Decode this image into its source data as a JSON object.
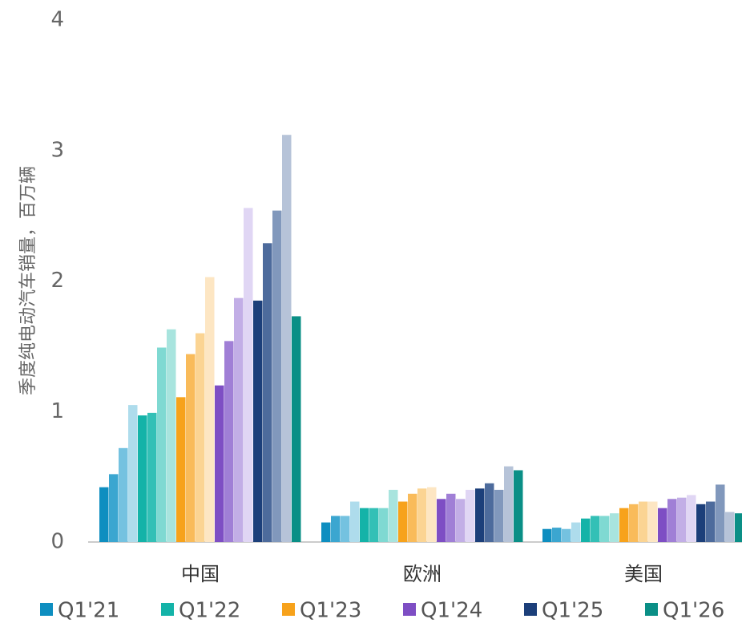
{
  "chart_data": {
    "type": "bar",
    "ylabel": "季度纯电动汽车销量，百万辆",
    "categories": [
      "中国",
      "欧洲",
      "美国"
    ],
    "ylim": [
      0,
      4
    ],
    "yticks": [
      0,
      1,
      2,
      3,
      4
    ],
    "grid": false,
    "series": [
      {
        "name": "Q1'21",
        "color": "#0e8ec0",
        "values": [
          0.42,
          0.15,
          0.1
        ]
      },
      {
        "color": "#3ba6d0",
        "values": [
          0.52,
          0.2,
          0.11
        ]
      },
      {
        "color": "#74c2e0",
        "values": [
          0.72,
          0.2,
          0.1
        ]
      },
      {
        "color": "#aedcec",
        "values": [
          1.05,
          0.31,
          0.15
        ]
      },
      {
        "name": "Q1'22",
        "color": "#14b3a8",
        "values": [
          0.97,
          0.26,
          0.18
        ]
      },
      {
        "color": "#33c0b6",
        "values": [
          0.99,
          0.26,
          0.2
        ]
      },
      {
        "color": "#7fd9d2",
        "values": [
          1.49,
          0.26,
          0.2
        ]
      },
      {
        "color": "#a8e4de",
        "values": [
          1.63,
          0.4,
          0.22
        ]
      },
      {
        "name": "Q1'23",
        "color": "#f7a21b",
        "values": [
          1.11,
          0.31,
          0.26
        ]
      },
      {
        "color": "#f9bb5a",
        "values": [
          1.44,
          0.37,
          0.29
        ]
      },
      {
        "color": "#fbd493",
        "values": [
          1.6,
          0.41,
          0.31
        ]
      },
      {
        "color": "#fde6c3",
        "values": [
          2.03,
          0.42,
          0.31
        ]
      },
      {
        "name": "Q1'24",
        "color": "#7e4ec4",
        "values": [
          1.2,
          0.33,
          0.26
        ]
      },
      {
        "color": "#a07fd6",
        "values": [
          1.54,
          0.37,
          0.33
        ]
      },
      {
        "color": "#c2aee6",
        "values": [
          1.87,
          0.33,
          0.34
        ]
      },
      {
        "color": "#e0d6f4",
        "values": [
          2.56,
          0.4,
          0.36
        ]
      },
      {
        "name": "Q1'25",
        "color": "#1c3f7a",
        "values": [
          1.85,
          0.41,
          0.29
        ]
      },
      {
        "color": "#4d6b9c",
        "values": [
          2.29,
          0.45,
          0.31
        ]
      },
      {
        "color": "#8198bc",
        "values": [
          2.54,
          0.4,
          0.44
        ]
      },
      {
        "color": "#b6c3d8",
        "values": [
          3.12,
          0.58,
          0.23
        ]
      },
      {
        "name": "Q1'26",
        "color": "#0a8f86",
        "values": [
          1.73,
          0.55,
          0.22
        ]
      }
    ]
  }
}
